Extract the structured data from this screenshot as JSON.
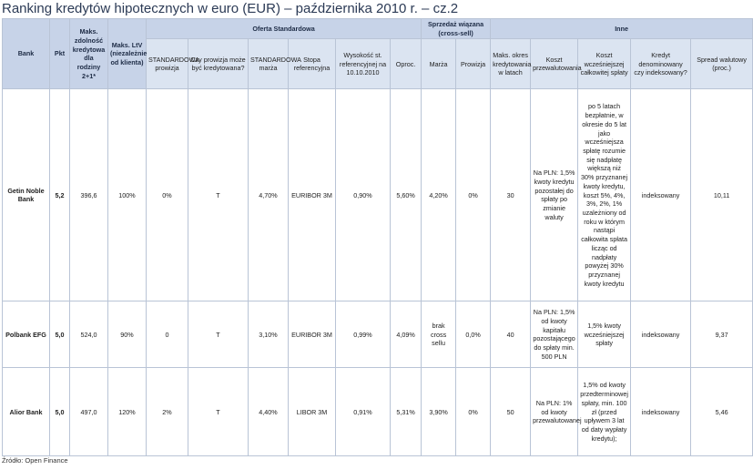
{
  "title": "Ranking kredytów hipotecznych w euro (EUR) – października 2010 r. – cz.2",
  "source": "Źródło: Open Finance",
  "groups": {
    "oferta": "Oferta Standardowa",
    "sprzedaz": "Sprzedaż wiązana (cross-sell)",
    "inne": "Inne"
  },
  "columns": [
    "Bank",
    "Pkt",
    "Maks. zdolność kredytowa dla rodziny 2+1*",
    "Maks. LtV (niezależnie od klienta)",
    "STANDARDOWA prowizja",
    "Czy prowizja może być kredytowana?",
    "STANDARDOWA marża",
    "Stopa referencyjna",
    "Wysokość st. referencyjnej na 10.10.2010",
    "Oproc.",
    "Marża",
    "Prowizja",
    "Maks. okres kredytowania w latach",
    "Koszt przewalutowania",
    "Koszt wcześniejszej całkowitej spłaty",
    "Kredyt denominowany czy indeksowany?",
    "Spread walutowy (proc.)"
  ],
  "rows": [
    {
      "bank": "Getin Noble Bank",
      "pkt": "5,2",
      "zdolnosc": "396,6",
      "ltv": "100%",
      "prowizja": "0%",
      "kredytowana": "T",
      "marza": "4,70%",
      "stopa": "EURIBOR 3M",
      "wysokosc": "0,90%",
      "oproc": "5,60%",
      "cs_marza": "4,20%",
      "cs_prowizja": "0%",
      "okres": "30",
      "przewalutowanie": "Na PLN: 1,5% kwoty kredytu pozostałej do spłaty po zmianie waluty",
      "splata": "po 5 latach bezpłatnie, w okresie do 5 lat jako wcześniejsza spłatę rozumie się nadpłatę większą niż 30% przyznanej kwoty kredytu, koszt 5%, 4%, 3%, 2%, 1% uzależniony od roku w którym nastąpi całkowita spłata licząc od nadpłaty powyżej 30% przyznanej kwoty kredytu",
      "denominowany": "indeksowany",
      "spread": "10,11"
    },
    {
      "bank": "Polbank EFG",
      "pkt": "5,0",
      "zdolnosc": "524,0",
      "ltv": "90%",
      "prowizja": "0",
      "kredytowana": "T",
      "marza": "3,10%",
      "stopa": "EURIBOR 3M",
      "wysokosc": "0,99%",
      "oproc": "4,09%",
      "cs_marza": "brak cross sellu",
      "cs_prowizja": "0,0%",
      "okres": "40",
      "przewalutowanie": "Na PLN: 1,5% od kwoty kapitału pozostającego do spłaty min. 500 PLN",
      "splata": "1,5% kwoty wcześniejszej spłaty",
      "denominowany": "indeksowany",
      "spread": "9,37"
    },
    {
      "bank": "Alior Bank",
      "pkt": "5,0",
      "zdolnosc": "497,0",
      "ltv": "120%",
      "prowizja": "2%",
      "kredytowana": "T",
      "marza": "4,40%",
      "stopa": "LIBOR 3M",
      "wysokosc": "0,91%",
      "oproc": "5,31%",
      "cs_marza": "3,90%",
      "cs_prowizja": "0%",
      "okres": "50",
      "przewalutowanie": "Na PLN: 1% od kwoty przewalutowanej",
      "splata": "1,5% od kwoty przedterminowej spłaty, min. 100 zł (przed upływem 3 lat od daty wypłaty kredytu);",
      "denominowany": "indeksowany",
      "spread": "5,46"
    }
  ]
}
